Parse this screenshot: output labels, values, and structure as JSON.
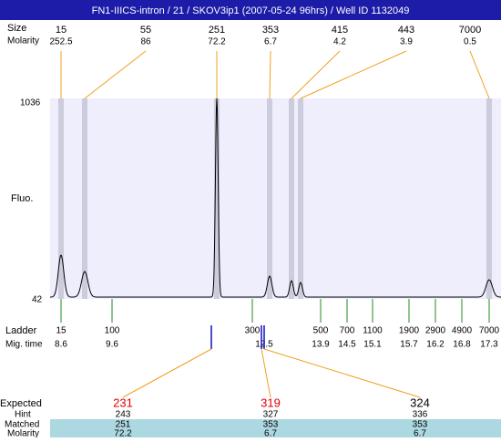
{
  "header": {
    "title": "FN1-IIICS-intron / 21 / SKOV3ip1 (2007-05-24 96hrs) / Well ID 1132049"
  },
  "peaks": {
    "size_label": "Size",
    "molarity_label": "Molarity",
    "items": [
      {
        "size": "15",
        "molarity": "252.5"
      },
      {
        "size": "55",
        "molarity": "86"
      },
      {
        "size": "251",
        "molarity": "72.2"
      },
      {
        "size": "353",
        "molarity": "6.7"
      },
      {
        "size": "415",
        "molarity": "4.2"
      },
      {
        "size": "443",
        "molarity": "3.9"
      },
      {
        "size": "7000",
        "molarity": "0.5"
      }
    ]
  },
  "plot": {
    "y_label": "Fluo.",
    "y_top": "1036",
    "y_bottom": "42"
  },
  "ladder": {
    "label": "Ladder",
    "time_label": "Mig. time",
    "items": [
      {
        "size": "15",
        "time": "8.6"
      },
      {
        "size": "100",
        "time": "9.6"
      },
      {
        "size": "300",
        "time": "12.5"
      },
      {
        "size": "500",
        "time": "13.9"
      },
      {
        "size": "700",
        "time": "14.5"
      },
      {
        "size": "1100",
        "time": "15.1"
      },
      {
        "size": "1900",
        "time": "15.7"
      },
      {
        "size": "2900",
        "time": "16.2"
      },
      {
        "size": "4900",
        "time": "16.8"
      },
      {
        "size": "7000",
        "time": "17.3"
      }
    ]
  },
  "expected": {
    "expected_label": "Expected",
    "hint_label": "Hint",
    "matched_label": "Matched",
    "molarity_label": "Molarity",
    "items": [
      {
        "expected": "231",
        "hint": "243",
        "matched": "251",
        "molarity": "72.2"
      },
      {
        "expected": "319",
        "hint": "327",
        "matched": "353",
        "molarity": "6.7"
      },
      {
        "expected": "324",
        "hint": "336",
        "matched": "353",
        "molarity": "6.7"
      }
    ]
  }
}
